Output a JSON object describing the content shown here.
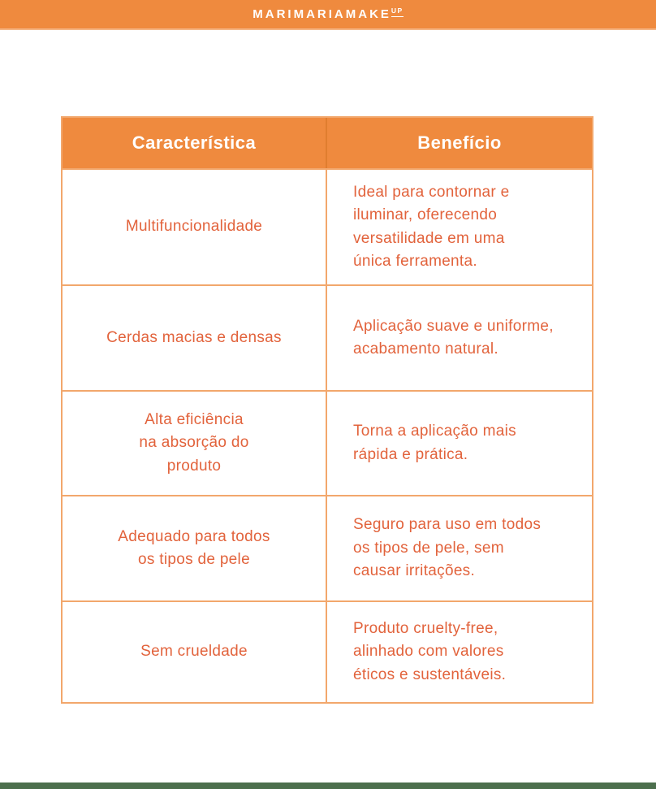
{
  "brand": {
    "logo_main": "MARIMARIAMAKE",
    "logo_sup": "UP"
  },
  "table": {
    "headers": {
      "feature": "Característica",
      "benefit": "Benefício"
    },
    "rows": [
      {
        "feature": "Multifuncionalidade",
        "benefit": "Ideal para contornar e\niluminar, oferecendo\nversatilidade em uma\núnica ferramenta."
      },
      {
        "feature": "Cerdas macias e densas",
        "benefit": "Aplicação suave e uniforme,\nacabamento natural."
      },
      {
        "feature": "Alta eficiência\nna absorção do\nproduto",
        "benefit": "Torna a aplicação mais\nrápida e prática."
      },
      {
        "feature": "Adequado para todos\nos tipos de pele",
        "benefit": "Seguro para uso em todos\nos tipos de pele, sem\ncausar irritações."
      },
      {
        "feature": "Sem crueldade",
        "benefit": "Produto cruelty-free,\nalinhado com valores\néticos e sustentáveis."
      }
    ]
  },
  "colors": {
    "banner_orange": "#EF8A3E",
    "text_orange": "#E2633C",
    "border_orange": "#F2A76C",
    "header_divider": "#E07D2F",
    "footer_green": "#4C6F4D",
    "banner_edge": "#F5B585"
  }
}
